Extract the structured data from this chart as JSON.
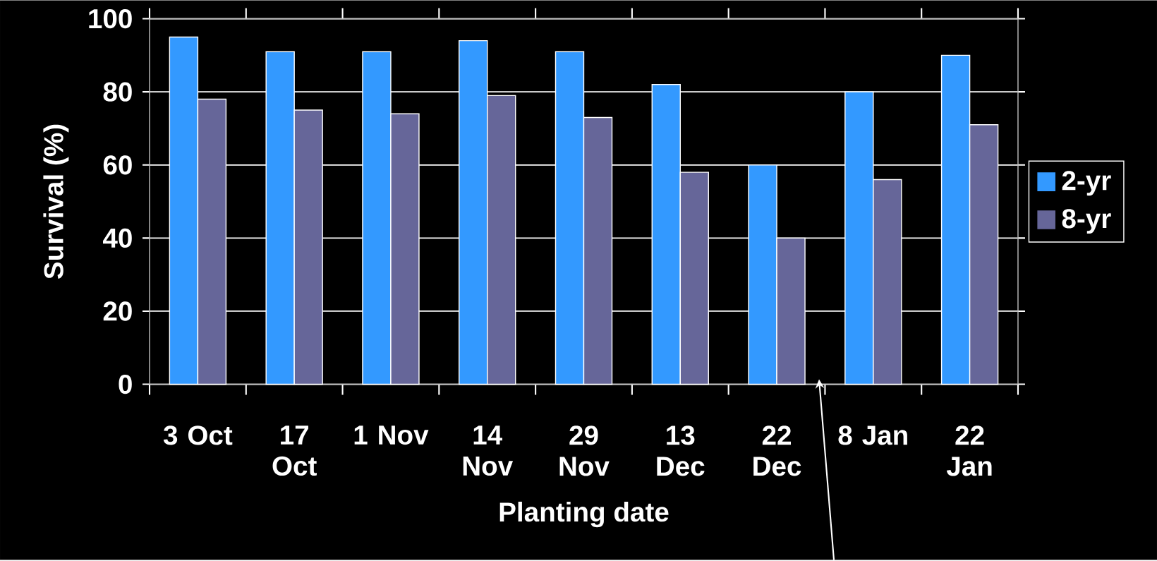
{
  "chart_data": {
    "type": "bar",
    "xlabel": "Planting date",
    "ylabel": "Survival (%)",
    "categories": [
      "3 Oct",
      "17 Oct",
      "1 Nov",
      "14 Nov",
      "29 Nov",
      "13 Dec",
      "22 Dec",
      "8 Jan",
      "22 Jan"
    ],
    "series": [
      {
        "name": "2-yr",
        "color": "#3399ff",
        "values": [
          95,
          91,
          91,
          94,
          91,
          82,
          60,
          80,
          90
        ]
      },
      {
        "name": "8-yr",
        "color": "#666699",
        "values": [
          78,
          75,
          74,
          79,
          73,
          58,
          40,
          56,
          71
        ]
      }
    ],
    "ylim": [
      0,
      100
    ],
    "yticks": [
      0,
      20,
      40,
      60,
      80,
      100
    ],
    "grid": "y",
    "legend": "right"
  }
}
